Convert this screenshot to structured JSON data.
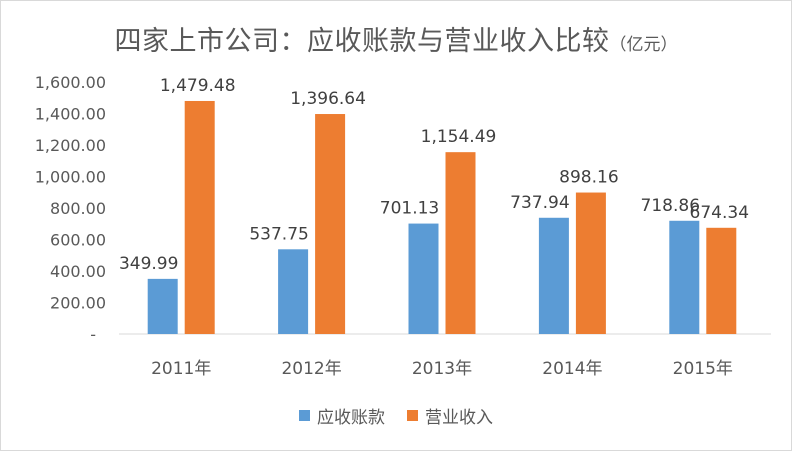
{
  "chart_data": {
    "type": "bar",
    "title": "四家上市公司：应收账款与营业收入比较",
    "unit": "（亿元）",
    "categories": [
      "2011年",
      "2012年",
      "2013年",
      "2014年",
      "2015年"
    ],
    "series": [
      {
        "name": "应收账款",
        "color": "#5b9bd5",
        "values": [
          349.99,
          537.75,
          701.13,
          737.94,
          718.86
        ],
        "labels": [
          "349.99",
          "537.75",
          "701.13",
          "737.94",
          "718.86"
        ]
      },
      {
        "name": "营业收入",
        "color": "#ed7d31",
        "values": [
          1479.48,
          1396.64,
          1154.49,
          898.16,
          674.34
        ],
        "labels": [
          "1,479.48",
          "1,396.64",
          "1,154.49",
          "898.16",
          "674.34"
        ]
      }
    ],
    "yticks": [
      {
        "value": 0,
        "label": "-"
      },
      {
        "value": 200,
        "label": "200.00"
      },
      {
        "value": 400,
        "label": "400.00"
      },
      {
        "value": 600,
        "label": "600.00"
      },
      {
        "value": 800,
        "label": "800.00"
      },
      {
        "value": 1000,
        "label": "1,000.00"
      },
      {
        "value": 1200,
        "label": "1,200.00"
      },
      {
        "value": 1400,
        "label": "1,400.00"
      },
      {
        "value": 1600,
        "label": "1,600.00"
      }
    ],
    "ylim": [
      0,
      1600
    ],
    "grid": false,
    "legend_position": "bottom"
  }
}
